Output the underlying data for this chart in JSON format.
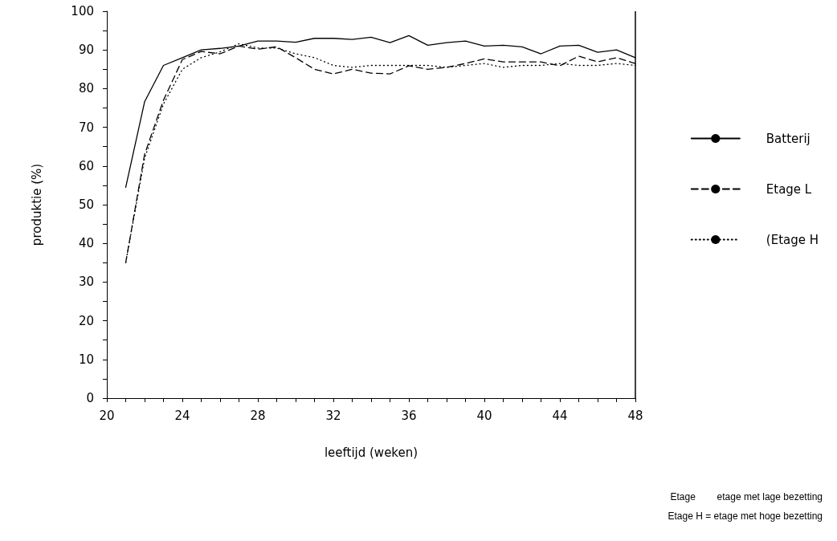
{
  "chart_data": {
    "type": "line",
    "xlabel": "leeftijd (weken)",
    "ylabel": "produktie (%)",
    "x": [
      21,
      22,
      23,
      24,
      25,
      26,
      27,
      28,
      29,
      30,
      31,
      32,
      33,
      34,
      35,
      36,
      37,
      38,
      39,
      40,
      41,
      42,
      43,
      44,
      45,
      46,
      47,
      48
    ],
    "series": [
      {
        "name": "Batterij",
        "color": "#000000",
        "line_style": "solid",
        "values": [
          54.5,
          76.6,
          86,
          88,
          90,
          90.4,
          91,
          92.3,
          92.3,
          92,
          93,
          93,
          92.7,
          93.3,
          91.9,
          93.7,
          91.2,
          91.9,
          92.3,
          91,
          91.2,
          90.8,
          89,
          91,
          91.2,
          89.4,
          90,
          88
        ]
      },
      {
        "name": "Etage L",
        "color": "#000000",
        "line_style": "dashed",
        "values": [
          35,
          63,
          77,
          87.5,
          89.6,
          89,
          91,
          90.2,
          90.8,
          88,
          85,
          83.8,
          85,
          84,
          83.8,
          85.9,
          85,
          85.5,
          86.5,
          87.7,
          86.9,
          86.9,
          86.9,
          85.9,
          88.4,
          86.9,
          88,
          86.5
        ]
      },
      {
        "name": "(Etage H",
        "color": "#000000",
        "line_style": "dotted",
        "values": [
          35,
          62,
          76,
          85,
          88,
          89.5,
          91.6,
          90.5,
          90.5,
          89,
          88,
          86,
          85.5,
          86,
          86,
          86,
          86,
          85.5,
          86,
          86.5,
          85.5,
          86,
          86,
          86.5,
          86,
          86,
          86.5,
          86
        ]
      }
    ],
    "xlim": [
      20,
      48
    ],
    "xticks": [
      20,
      {
        "value": 21,
        "label": null
      },
      {
        "value": 22,
        "label": null
      },
      {
        "value": 23,
        "label": null
      },
      24,
      {
        "value": 25,
        "label": null
      },
      {
        "value": 26,
        "label": null
      },
      {
        "value": 27,
        "label": null
      },
      28,
      {
        "value": 29,
        "label": null
      },
      {
        "value": 30,
        "label": null
      },
      {
        "value": 31,
        "label": null
      },
      32,
      {
        "value": 33,
        "label": null
      },
      {
        "value": 34,
        "label": null
      },
      {
        "value": 35,
        "label": null
      },
      36,
      {
        "value": 37,
        "label": null
      },
      {
        "value": 38,
        "label": null
      },
      {
        "value": 39,
        "label": null
      },
      40,
      {
        "value": 41,
        "label": null
      },
      {
        "value": 42,
        "label": null
      },
      {
        "value": 43,
        "label": null
      },
      44,
      {
        "value": 45,
        "label": null
      },
      {
        "value": 46,
        "label": null
      },
      {
        "value": 47,
        "label": null
      },
      48
    ],
    "ylim": [
      0,
      100
    ],
    "yticks": [
      0,
      {
        "value": 5,
        "label": null
      },
      10,
      {
        "value": 15,
        "label": null
      },
      20,
      {
        "value": 25,
        "label": null
      },
      30,
      {
        "value": 35,
        "label": null
      },
      40,
      {
        "value": 45,
        "label": null
      },
      50,
      {
        "value": 55,
        "label": null
      },
      60,
      {
        "value": 65,
        "label": null
      },
      70,
      {
        "value": 75,
        "label": null
      },
      80,
      {
        "value": 85,
        "label": null
      },
      90,
      {
        "value": 95,
        "label": null
      },
      100
    ],
    "grid": false,
    "legend": "right",
    "marker": "none",
    "annotations": [
      "Etage        etage met lage bezetting",
      "Etage H = etage met hoge bezetting"
    ]
  }
}
